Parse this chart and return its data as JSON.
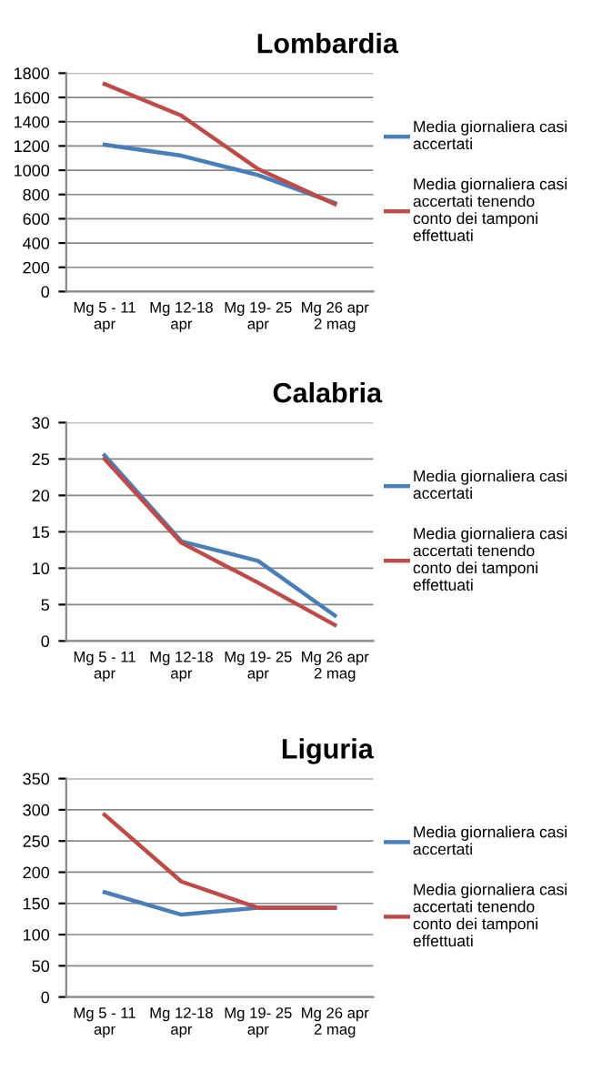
{
  "chart_data": [
    {
      "type": "line",
      "title": "Lombardia",
      "categories": [
        "Mg 5 - 11\napr",
        "Mg 12-18\napr",
        "Mg 19- 25\napr",
        "Mg 26 apr\n2 mag"
      ],
      "ylim": [
        0,
        1800
      ],
      "yticks": [
        0,
        200,
        400,
        600,
        800,
        1000,
        1200,
        1400,
        1600,
        1800
      ],
      "grid": "y",
      "legend": "right",
      "marker": "none",
      "line_style": "solid",
      "series": [
        {
          "name": "Media giornaliera casi\naccertati",
          "color": "#4a7ebb",
          "values": [
            1210,
            1120,
            960,
            730
          ]
        },
        {
          "name": "Media giornaliera casi\naccertati tenendo\nconto dei tamponi\neffettuati",
          "color": "#be4b48",
          "values": [
            1710,
            1450,
            1010,
            720
          ]
        }
      ]
    },
    {
      "type": "line",
      "title": "Calabria",
      "categories": [
        "Mg 5 - 11\napr",
        "Mg 12-18\napr",
        "Mg 19- 25\napr",
        "Mg 26 apr\n2 mag"
      ],
      "ylim": [
        0,
        30
      ],
      "yticks": [
        0,
        5,
        10,
        15,
        20,
        25,
        30
      ],
      "grid": "y",
      "legend": "right",
      "marker": "none",
      "line_style": "solid",
      "series": [
        {
          "name": "Media giornaliera casi\naccertati",
          "color": "#4a7ebb",
          "values": [
            25.5,
            13.7,
            11,
            3.5
          ]
        },
        {
          "name": "Media giornaliera casi\naccertati tenendo\nconto dei tamponi\neffettuati",
          "color": "#be4b48",
          "values": [
            25,
            13.5,
            8,
            2.2
          ]
        }
      ]
    },
    {
      "type": "line",
      "title": "Liguria",
      "categories": [
        "Mg 5 - 11\napr",
        "Mg 12-18\napr",
        "Mg 19- 25\napr",
        "Mg 26 apr\n2 mag"
      ],
      "ylim": [
        0,
        350
      ],
      "yticks": [
        0,
        50,
        100,
        150,
        200,
        250,
        300,
        350
      ],
      "grid": "y",
      "legend": "right",
      "marker": "none",
      "line_style": "solid",
      "series": [
        {
          "name": "Media giornaliera casi\naccertati",
          "color": "#4a7ebb",
          "values": [
            168,
            132,
            143,
            143
          ]
        },
        {
          "name": "Media giornaliera casi\naccertati tenendo\nconto dei tamponi\neffettuati",
          "color": "#be4b48",
          "values": [
            292,
            185,
            143,
            143
          ]
        }
      ]
    }
  ]
}
